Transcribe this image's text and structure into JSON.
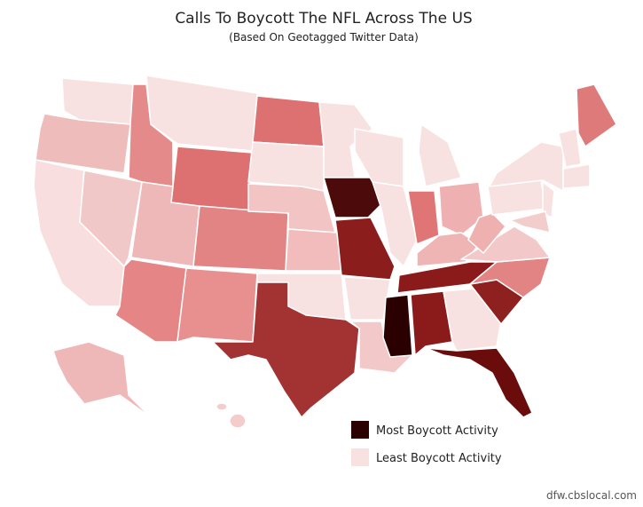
{
  "title": "Calls To Boycott The NFL Across The US",
  "subtitle": "(Based On Geotagged Twitter Data)",
  "legend": [
    {
      "label": "Most Boycott Activity"
    },
    {
      "label": "Least Boycott Activity"
    }
  ],
  "watermark": "dfw.cbslocal.com"
}
